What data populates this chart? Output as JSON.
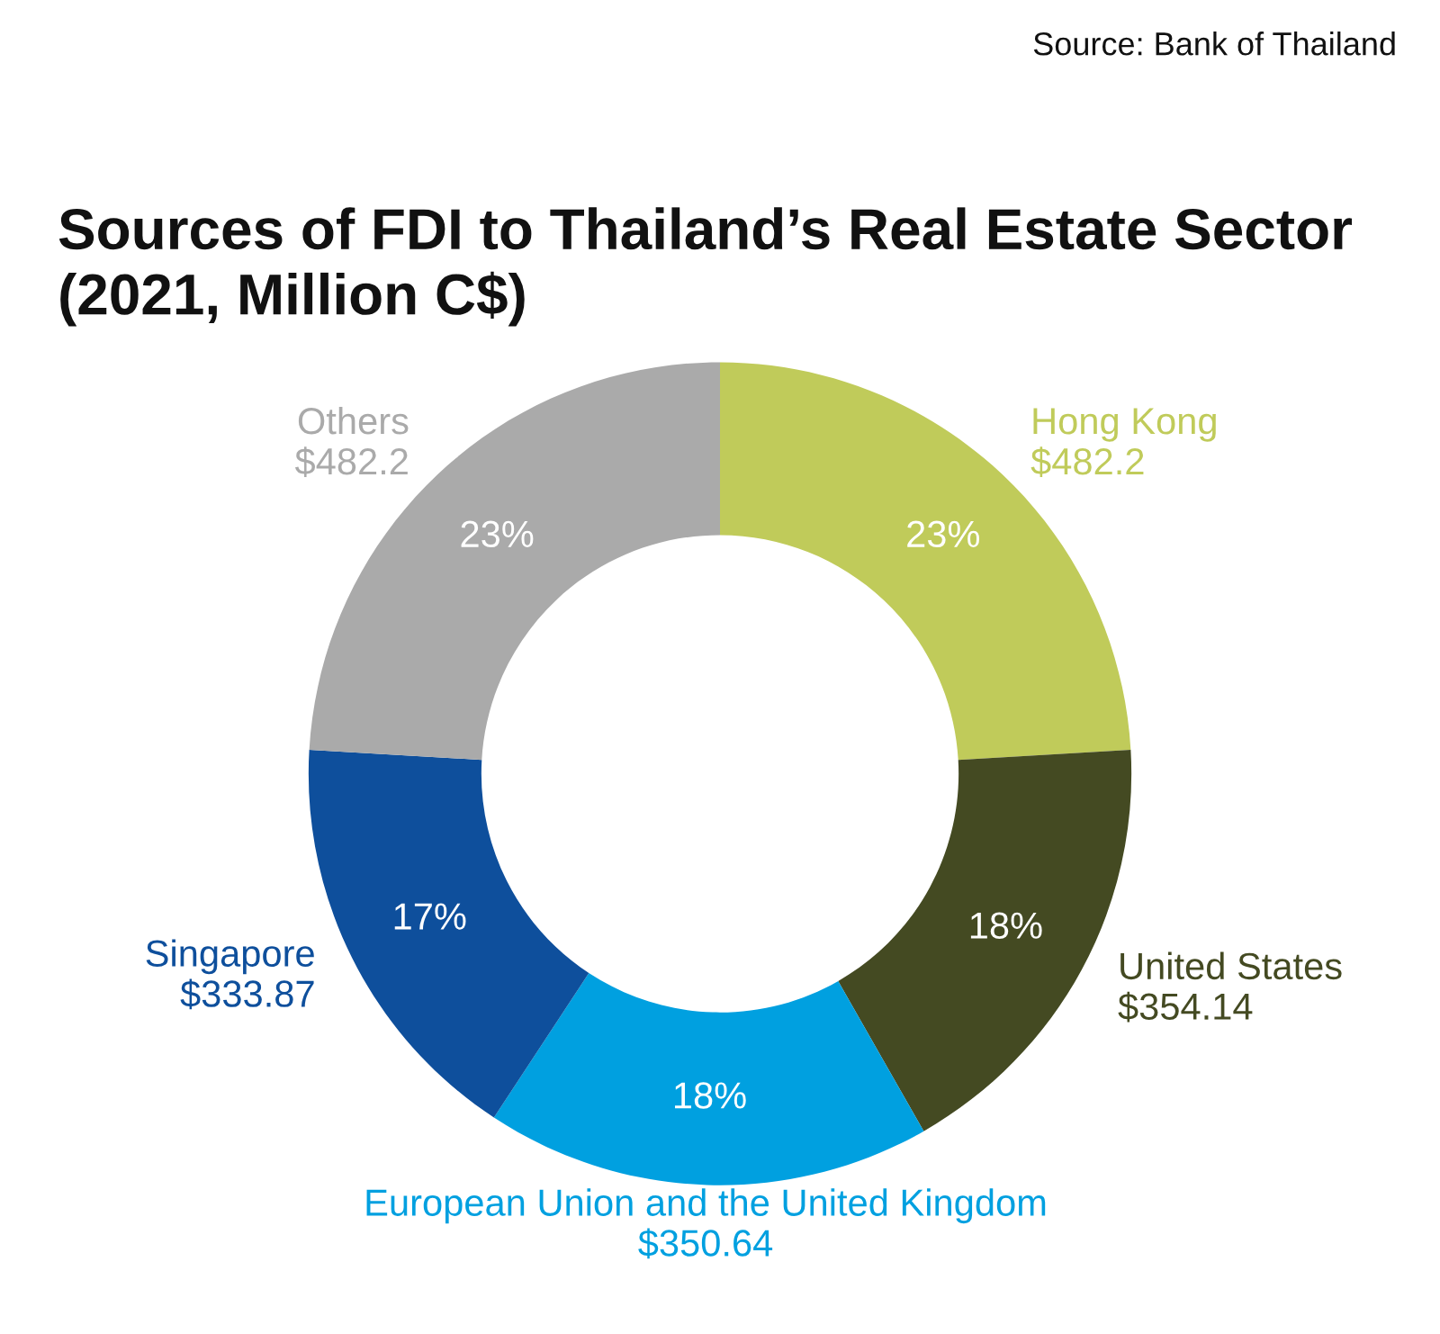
{
  "chart_data": {
    "type": "donut",
    "title": "Sources of FDI to Thailand’s Real Estate Sector\n(2021, Million C$)",
    "categories": [
      "Hong Kong",
      "United States",
      "European Union and the United Kingdom",
      "Singapore",
      "Others"
    ],
    "values": [
      482.2,
      354.14,
      350.64,
      333.87,
      482.2
    ],
    "value_labels": [
      "$482.2",
      "$354.14",
      "$350.64",
      "$333.87",
      "$482.2"
    ],
    "colors": [
      "#c0cb5a",
      "#444a22",
      "#00a0e0",
      "#0e4f9c",
      "#aaaaaa"
    ],
    "annotations": [
      {
        "text": "23%",
        "x": "Hong Kong"
      },
      {
        "text": "18%",
        "x": "United States"
      },
      {
        "text": "18%",
        "x": "European Union and the United Kingdom"
      },
      {
        "text": "17%",
        "x": "Singapore"
      },
      {
        "text": "23%",
        "x": "Others"
      },
      "Source: Bank of Thailand"
    ]
  }
}
